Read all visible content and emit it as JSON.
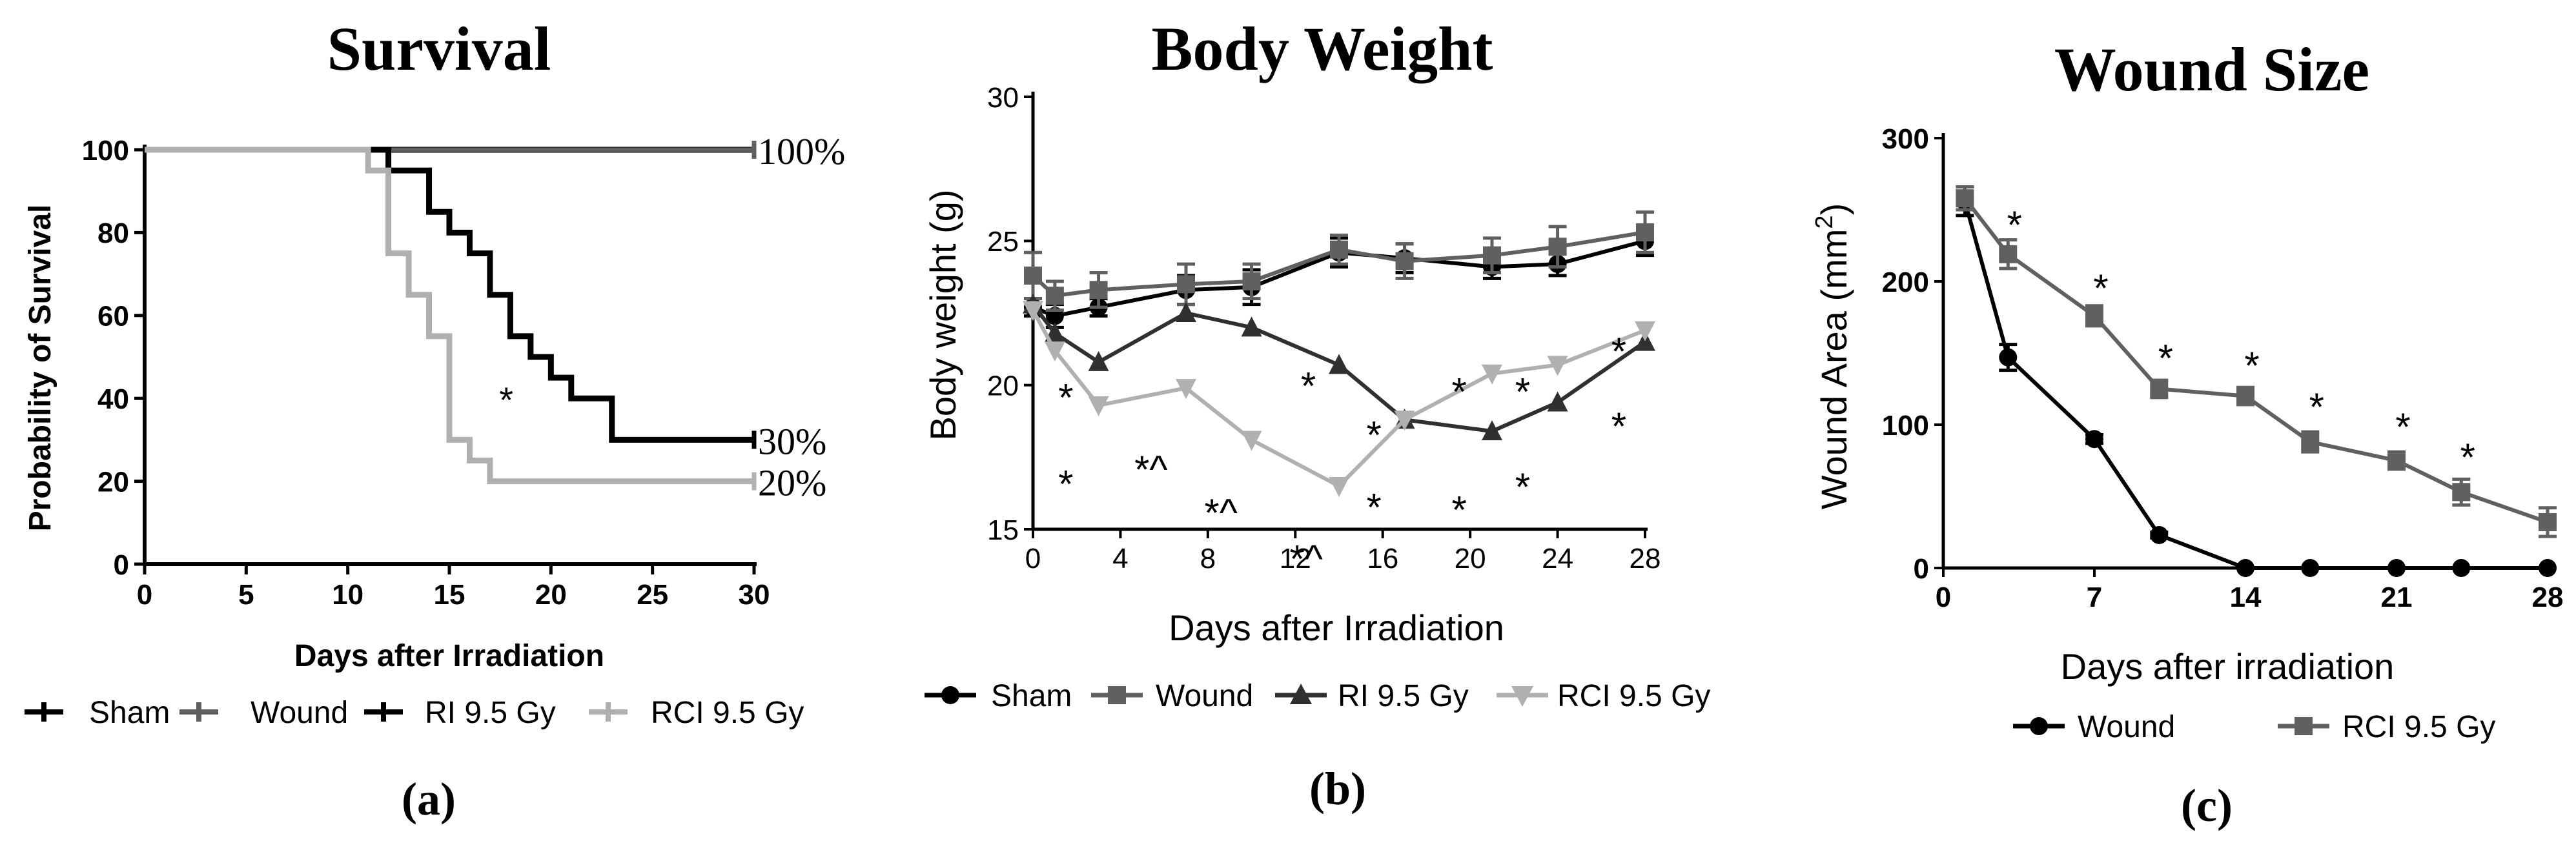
{
  "chart_data": [
    {
      "type": "line",
      "style": "step",
      "panel_label": "(a)",
      "title": "Survival",
      "xlabel": "Days after Irradiation",
      "ylabel": "Probability of Survival",
      "xlim": [
        0,
        30
      ],
      "ylim": [
        0,
        100
      ],
      "xticks": [
        0,
        5,
        10,
        15,
        20,
        25,
        30
      ],
      "yticks": [
        0,
        20,
        40,
        60,
        80,
        100
      ],
      "series": [
        {
          "name": "Sham",
          "color": "#000000",
          "points": [
            [
              0,
              100
            ],
            [
              30,
              100
            ]
          ]
        },
        {
          "name": "Wound",
          "color": "#606060",
          "points": [
            [
              0,
              100
            ],
            [
              30,
              100
            ]
          ]
        },
        {
          "name": "RI 9.5 Gy",
          "color": "#000000",
          "points": [
            [
              0,
              100
            ],
            [
              12,
              100
            ],
            [
              12,
              95
            ],
            [
              14,
              95
            ],
            [
              14,
              85
            ],
            [
              15,
              85
            ],
            [
              15,
              80
            ],
            [
              16,
              80
            ],
            [
              16,
              75
            ],
            [
              17,
              75
            ],
            [
              17,
              65
            ],
            [
              18,
              65
            ],
            [
              18,
              55
            ],
            [
              19,
              55
            ],
            [
              19,
              50
            ],
            [
              20,
              50
            ],
            [
              20,
              45
            ],
            [
              21,
              45
            ],
            [
              21,
              40
            ],
            [
              23,
              40
            ],
            [
              23,
              30
            ],
            [
              30,
              30
            ]
          ]
        },
        {
          "name": "RCI 9.5 Gy",
          "color": "#b0b0b0",
          "points": [
            [
              0,
              100
            ],
            [
              11,
              100
            ],
            [
              11,
              95
            ],
            [
              12,
              95
            ],
            [
              12,
              75
            ],
            [
              13,
              75
            ],
            [
              13,
              65
            ],
            [
              14,
              65
            ],
            [
              14,
              55
            ],
            [
              15,
              55
            ],
            [
              15,
              30
            ],
            [
              16,
              30
            ],
            [
              16,
              25
            ],
            [
              17,
              25
            ],
            [
              17,
              20
            ],
            [
              30,
              20
            ]
          ]
        }
      ],
      "annotations": [
        {
          "text": "100%",
          "x": 30,
          "y": 100
        },
        {
          "text": "30%",
          "x": 30,
          "y": 30
        },
        {
          "text": "20%",
          "x": 30,
          "y": 20
        },
        {
          "text": "*",
          "x": 17.8,
          "y": 40
        }
      ],
      "legend": [
        "Sham",
        "Wound",
        "RI 9.5 Gy",
        "RCI 9.5 Gy"
      ]
    },
    {
      "type": "line",
      "panel_label": "(b)",
      "title": "Body Weight",
      "xlabel": "Days after Irradiation",
      "ylabel": "Body weight (g)",
      "xlim": [
        0,
        28
      ],
      "ylim": [
        15,
        30
      ],
      "xticks": [
        0,
        4,
        8,
        12,
        16,
        20,
        24,
        28
      ],
      "yticks": [
        15,
        20,
        25,
        30
      ],
      "series": [
        {
          "name": "Sham",
          "color": "#000000",
          "marker": "circle",
          "x": [
            0,
            1,
            3,
            7,
            10,
            14,
            17,
            21,
            24,
            28
          ],
          "y": [
            22.7,
            22.4,
            22.7,
            23.3,
            23.4,
            24.6,
            24.4,
            24.1,
            24.2,
            25.0
          ],
          "err": [
            0.3,
            0.4,
            0.3,
            0.5,
            0.6,
            0.5,
            0.5,
            0.4,
            0.4,
            0.5
          ]
        },
        {
          "name": "Wound",
          "color": "#606060",
          "marker": "square",
          "x": [
            0,
            1,
            3,
            7,
            10,
            14,
            17,
            21,
            24,
            28
          ],
          "y": [
            23.8,
            23.1,
            23.3,
            23.5,
            23.6,
            24.7,
            24.3,
            24.5,
            24.8,
            25.3
          ],
          "err": [
            0.8,
            0.5,
            0.6,
            0.7,
            0.6,
            0.5,
            0.6,
            0.6,
            0.7,
            0.7
          ]
        },
        {
          "name": "RI 9.5 Gy",
          "color": "#303030",
          "marker": "triangle-up",
          "x": [
            0,
            1,
            3,
            7,
            10,
            14,
            17,
            21,
            24,
            28
          ],
          "y": [
            22.8,
            21.8,
            20.8,
            22.5,
            22.0,
            20.7,
            18.8,
            18.4,
            19.4,
            21.5
          ],
          "err": [
            0,
            0,
            0,
            0,
            0,
            0,
            0,
            0,
            0,
            0
          ]
        },
        {
          "name": "RCI 9.5 Gy",
          "color": "#b0b0b0",
          "marker": "triangle-down",
          "x": [
            0,
            1,
            3,
            7,
            10,
            14,
            17,
            21,
            24,
            28
          ],
          "y": [
            22.6,
            21.2,
            19.3,
            19.9,
            18.1,
            16.5,
            18.8,
            20.4,
            20.7,
            21.9
          ],
          "err": [
            0,
            0,
            0,
            0,
            0,
            0,
            0,
            0,
            0,
            0
          ]
        }
      ],
      "annotations": [
        {
          "text": "*",
          "x": 1.5,
          "y": 19.6
        },
        {
          "text": "*",
          "x": 1.5,
          "y": 16.6
        },
        {
          "text": "*^",
          "x": 5.4,
          "y": 17.1
        },
        {
          "text": "*^",
          "x": 8.6,
          "y": 15.6
        },
        {
          "text": "*^",
          "x": 12.5,
          "y": 14.0
        },
        {
          "text": "*",
          "x": 12.6,
          "y": 20.0
        },
        {
          "text": "*",
          "x": 15.6,
          "y": 18.3
        },
        {
          "text": "*",
          "x": 15.6,
          "y": 15.8
        },
        {
          "text": "*",
          "x": 19.5,
          "y": 19.8
        },
        {
          "text": "*",
          "x": 19.5,
          "y": 15.7
        },
        {
          "text": "*",
          "x": 22.4,
          "y": 19.8
        },
        {
          "text": "*",
          "x": 22.4,
          "y": 16.5
        },
        {
          "text": "*",
          "x": 26.8,
          "y": 21.2
        },
        {
          "text": "*",
          "x": 26.8,
          "y": 18.6
        }
      ],
      "legend": [
        "Sham",
        "Wound",
        "RI 9.5 Gy",
        "RCI 9.5 Gy"
      ]
    },
    {
      "type": "line",
      "panel_label": "(c)",
      "title": "Wound Size",
      "xlabel": "Days after irradiation",
      "ylabel": "Wound Area (mm²)",
      "ylabel_parts": [
        "Wound Area (mm",
        "2",
        ")"
      ],
      "xlim": [
        0,
        28
      ],
      "ylim": [
        0,
        300
      ],
      "xticks": [
        0,
        7,
        14,
        21,
        28
      ],
      "yticks": [
        0,
        100,
        200,
        300
      ],
      "series": [
        {
          "name": "Wound",
          "color": "#000000",
          "marker": "circle",
          "x": [
            1,
            3,
            7,
            10,
            14,
            17,
            21,
            24,
            28
          ],
          "y": [
            256,
            147,
            90,
            23,
            0,
            0,
            0,
            0,
            0
          ],
          "err": [
            10,
            9,
            3,
            2,
            0,
            0,
            0,
            0,
            0
          ]
        },
        {
          "name": "RCI 9.5 Gy",
          "color": "#606060",
          "marker": "square",
          "x": [
            1,
            3,
            7,
            10,
            14,
            17,
            21,
            24,
            28
          ],
          "y": [
            258,
            219,
            176,
            125,
            120,
            88,
            75,
            53,
            32
          ],
          "err": [
            8,
            10,
            7,
            6,
            6,
            7,
            6,
            9,
            10
          ]
        }
      ],
      "annotations": [
        {
          "text": "*",
          "x": 3.3,
          "y": 240
        },
        {
          "text": "*",
          "x": 7.3,
          "y": 196
        },
        {
          "text": "*",
          "x": 10.3,
          "y": 147
        },
        {
          "text": "*",
          "x": 14.3,
          "y": 142
        },
        {
          "text": "*",
          "x": 17.3,
          "y": 113
        },
        {
          "text": "*",
          "x": 21.3,
          "y": 99
        },
        {
          "text": "*",
          "x": 24.3,
          "y": 78
        }
      ],
      "legend": [
        "Wound",
        "RCI 9.5 Gy"
      ]
    }
  ]
}
